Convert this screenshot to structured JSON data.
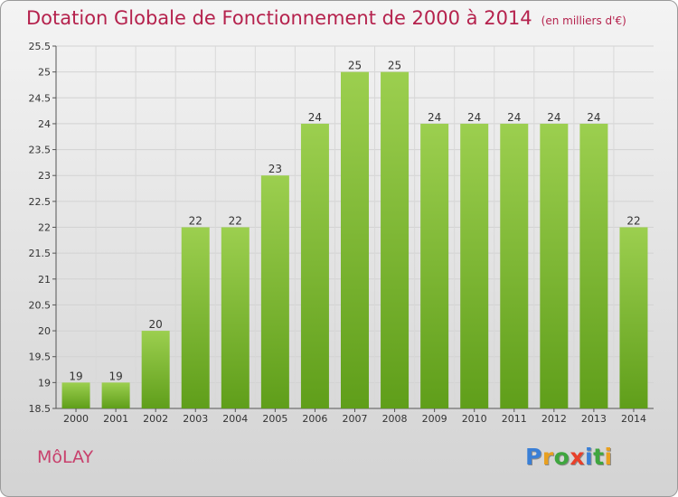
{
  "title": "Dotation Globale de Fonctionnement de 2000 à 2014",
  "unit_note": "(en milliers d'€)",
  "commune": "MôLAY",
  "logo": {
    "text": "Proxiti",
    "letter_colors": [
      "#3a7fd6",
      "#e8a020",
      "#3fa63f",
      "#e8402a",
      "#3a7fd6",
      "#3fa63f",
      "#e8a020"
    ]
  },
  "chart_data": {
    "type": "bar",
    "categories": [
      "2000",
      "2001",
      "2002",
      "2003",
      "2004",
      "2005",
      "2006",
      "2007",
      "2008",
      "2009",
      "2010",
      "2011",
      "2012",
      "2013",
      "2014"
    ],
    "values": [
      19,
      19,
      20,
      22,
      22,
      23,
      24,
      25,
      25,
      24,
      24,
      24,
      24,
      24,
      22
    ],
    "value_labels": [
      "19",
      "19",
      "20",
      "22",
      "22",
      "23",
      "24",
      "25",
      "25",
      "24",
      "24",
      "24",
      "24",
      "24",
      "22"
    ],
    "yticks": [
      "18.5",
      "19",
      "19.5",
      "20",
      "20.5",
      "21",
      "21.5",
      "22",
      "22.5",
      "23",
      "23.5",
      "24",
      "24.5",
      "25",
      "25.5"
    ],
    "ylim": [
      18.5,
      25.5
    ],
    "bar_color_top": "#9ccf4f",
    "bar_color_bottom": "#5f9e1a",
    "grid": true
  }
}
